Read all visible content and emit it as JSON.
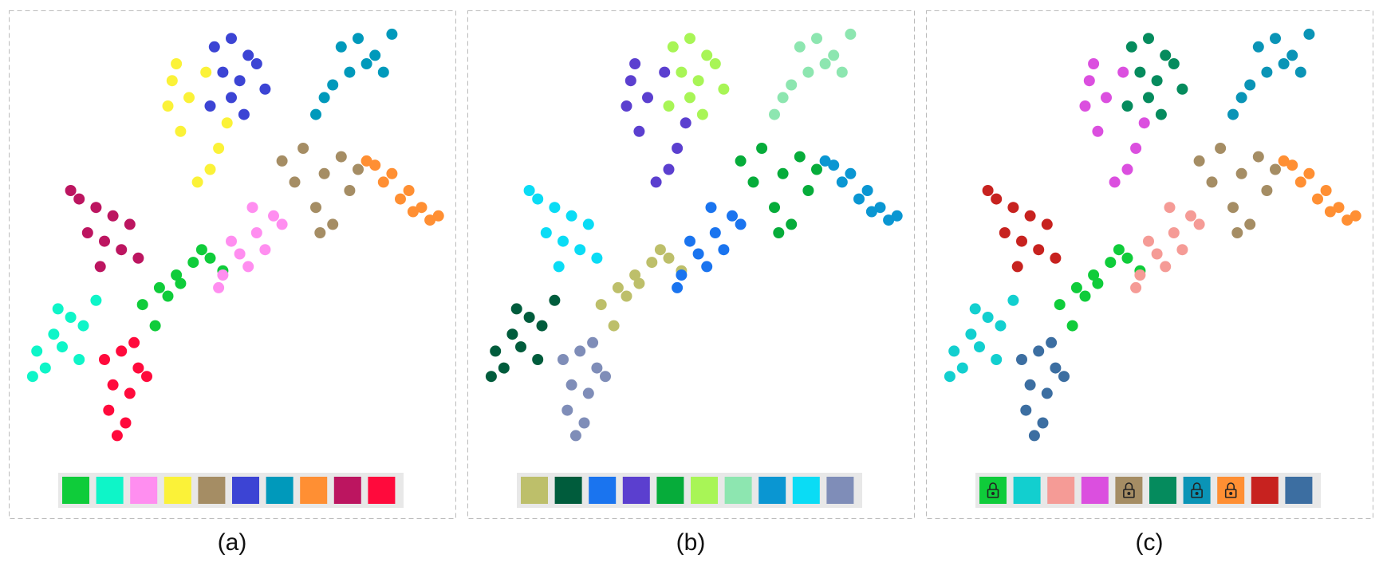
{
  "clusters": [
    {
      "x": [
        29,
        33,
        37,
        41,
        45,
        35,
        48,
        32,
        38,
        43
      ],
      "y": [
        67,
        63,
        60,
        57,
        56,
        65,
        59,
        72,
        62,
        54
      ]
    },
    {
      "x": [
        4,
        8,
        12,
        6,
        10,
        15,
        3,
        9,
        14,
        18
      ],
      "y": [
        78,
        74,
        70,
        82,
        77,
        72,
        84,
        68,
        80,
        66
      ]
    },
    {
      "x": [
        48,
        52,
        56,
        60,
        54,
        50,
        58,
        62,
        47,
        55
      ],
      "y": [
        60,
        55,
        50,
        46,
        58,
        52,
        54,
        48,
        63,
        44
      ]
    },
    {
      "x": [
        36,
        40,
        35,
        44,
        38,
        47,
        45,
        49,
        42,
        37
      ],
      "y": [
        14,
        18,
        20,
        12,
        26,
        30,
        35,
        24,
        38,
        10
      ]
    },
    {
      "x": [
        62,
        67,
        72,
        76,
        70,
        74,
        78,
        65,
        80,
        71
      ],
      "y": [
        33,
        30,
        36,
        32,
        44,
        48,
        40,
        38,
        35,
        50
      ]
    },
    {
      "x": [
        46,
        50,
        54,
        48,
        52,
        56,
        50,
        45,
        58,
        53
      ],
      "y": [
        6,
        4,
        8,
        12,
        14,
        10,
        18,
        20,
        16,
        22
      ]
    },
    {
      "x": [
        76,
        80,
        84,
        86,
        82,
        78,
        74,
        72,
        70,
        88
      ],
      "y": [
        6,
        4,
        8,
        12,
        10,
        12,
        15,
        18,
        22,
        3
      ]
    },
    {
      "x": [
        84,
        88,
        92,
        95,
        90,
        86,
        97,
        93,
        82,
        99
      ],
      "y": [
        34,
        36,
        40,
        44,
        42,
        38,
        47,
        45,
        33,
        46
      ]
    },
    {
      "x": [
        14,
        18,
        22,
        16,
        20,
        26,
        24,
        12,
        28,
        19
      ],
      "y": [
        42,
        44,
        46,
        50,
        52,
        48,
        54,
        40,
        56,
        58
      ]
    },
    {
      "x": [
        20,
        24,
        28,
        22,
        26,
        30,
        21,
        25,
        23,
        27
      ],
      "y": [
        80,
        78,
        82,
        86,
        88,
        84,
        92,
        95,
        98,
        76
      ]
    }
  ],
  "panels": [
    {
      "caption": "(a)",
      "palette": [
        "#0fcc3a",
        "#0ef5c8",
        "#ff8ef0",
        "#fbf238",
        "#a58d64",
        "#3c44d4",
        "#0099bb",
        "#ff8f33",
        "#bc1560",
        "#ff0a3c"
      ]
    },
    {
      "caption": "(b)",
      "palette": [
        "#bdbf6a",
        "#005c3c",
        "#1a74ef",
        "#5b3fcf",
        "#06ac3a",
        "#a8f556",
        "#8de6b0",
        "#0a96d2",
        "#0adcf5",
        "#7f8db8"
      ]
    },
    {
      "caption": "(c)",
      "palette": [
        "#0fcc3a",
        "#12cfcf",
        "#f59b96",
        "#db4fdf",
        "#a58d64",
        "#058b5d",
        "#0a94b6",
        "#ff8f33",
        "#c7221f",
        "#3c6ea1"
      ],
      "locked": [
        true,
        false,
        false,
        false,
        true,
        false,
        true,
        true,
        false,
        false
      ]
    }
  ]
}
